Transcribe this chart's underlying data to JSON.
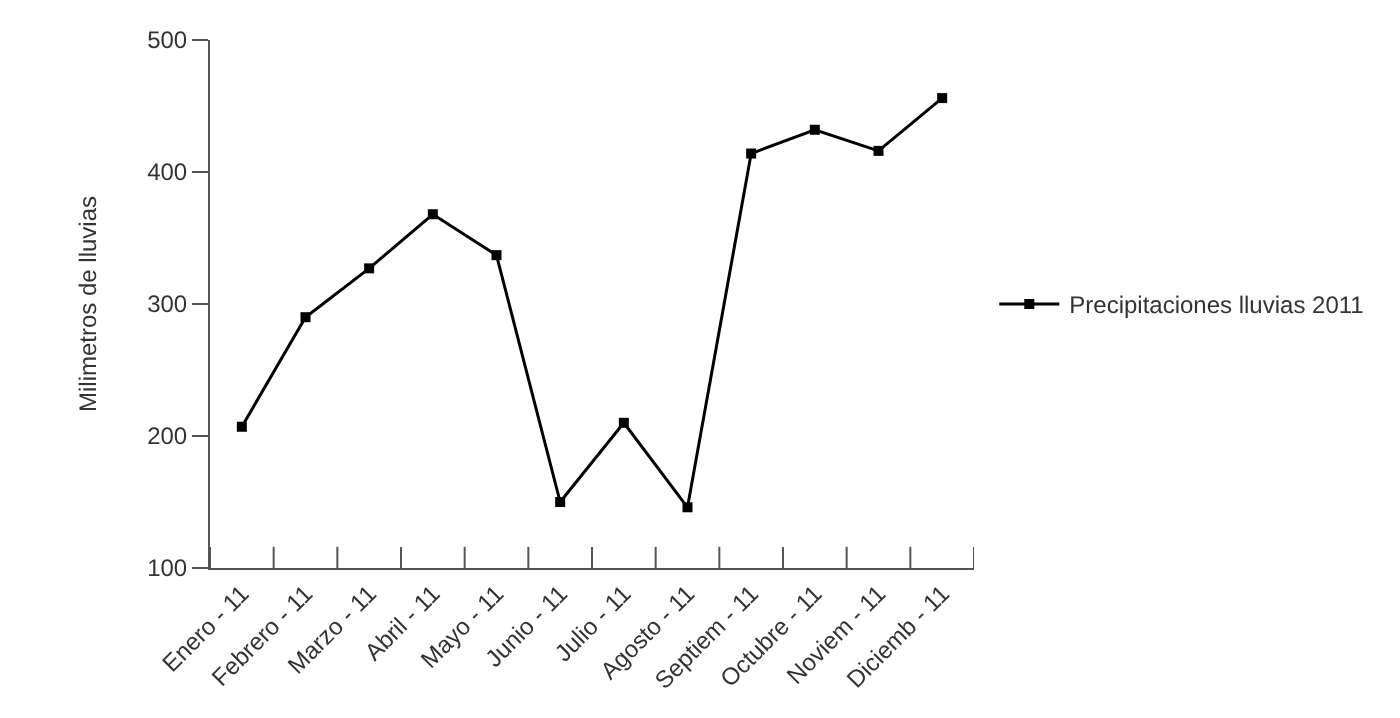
{
  "chart_data": {
    "type": "line",
    "ylabel": "Milimetros de lluvias",
    "categories": [
      "Enero - 11",
      "Febrero - 11",
      "Marzo - 11",
      "Abril - 11",
      "Mayo - 11",
      "Junio - 11",
      "Julio - 11",
      "Agosto - 11",
      "Septiem - 11",
      "Octubre - 11",
      "Noviem - 11",
      "Diciemb - 11"
    ],
    "series": [
      {
        "name": "Precipitaciones lluvias 2011",
        "color": "#000000",
        "values": [
          207,
          290,
          327,
          368,
          337,
          150,
          210,
          146,
          414,
          432,
          416,
          456
        ]
      }
    ],
    "ylim": [
      100,
      500
    ],
    "yticks": [
      100,
      200,
      300,
      400,
      500
    ],
    "legend": "right",
    "marker": "square",
    "line_style": "solid"
  }
}
